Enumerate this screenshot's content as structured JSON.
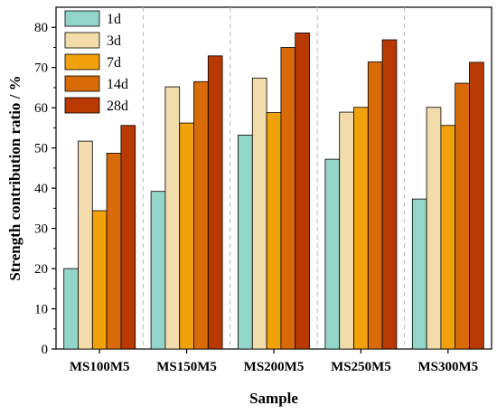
{
  "chart_data": {
    "type": "bar",
    "title": "",
    "xlabel": "Sample",
    "ylabel": "Strength contribution ratio / %",
    "ylim": [
      0,
      85
    ],
    "yticks": [
      0,
      10,
      20,
      30,
      40,
      50,
      60,
      70,
      80
    ],
    "categories": [
      "MS100M5",
      "MS150M5",
      "MS200M5",
      "MS250M5",
      "MS300M5"
    ],
    "grid": "vertical dashed separators between categories",
    "legend_position": "top-left",
    "series": [
      {
        "name": "1d",
        "color": "#93d5c8",
        "values": [
          20.0,
          39.2,
          53.2,
          47.2,
          37.3
        ]
      },
      {
        "name": "3d",
        "color": "#f2dcab",
        "values": [
          51.7,
          65.2,
          67.4,
          58.9,
          60.1
        ]
      },
      {
        "name": "7d",
        "color": "#f0a10b",
        "values": [
          34.4,
          56.2,
          58.8,
          60.1,
          55.6
        ]
      },
      {
        "name": "14d",
        "color": "#d86b08",
        "values": [
          48.7,
          66.5,
          75.0,
          71.4,
          66.1
        ]
      },
      {
        "name": "28d",
        "color": "#b83a02",
        "values": [
          55.6,
          72.9,
          78.6,
          76.9,
          71.3
        ]
      }
    ]
  }
}
